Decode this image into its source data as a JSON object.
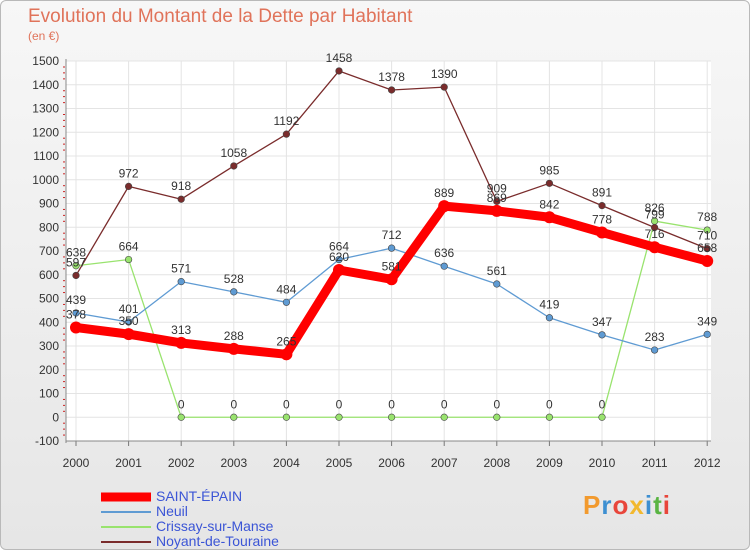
{
  "title": "Evolution du Montant de la Dette par Habitant",
  "subtitle": "(en €)",
  "logo": {
    "letters": [
      "P",
      "r",
      "o",
      "x",
      "i",
      "t",
      "i"
    ],
    "colors": [
      "#f29a2e",
      "#3d8fd1",
      "#e8463b",
      "#f2b82e",
      "#3d8fd1",
      "#59b443",
      "#e8463b"
    ]
  },
  "chart_data": {
    "type": "line",
    "title": "Evolution du Montant de la Dette par Habitant",
    "ylabel": "(en €)",
    "xlabel": "",
    "x": [
      "2000",
      "2001",
      "2002",
      "2003",
      "2004",
      "2005",
      "2006",
      "2007",
      "2008",
      "2009",
      "2010",
      "2011",
      "2012"
    ],
    "ylim": [
      -100,
      1500
    ],
    "yticks": [
      "-100",
      "0",
      "100",
      "200",
      "300",
      "400",
      "500",
      "600",
      "700",
      "800",
      "900",
      "1000",
      "1100",
      "1200",
      "1300",
      "1400",
      "1500"
    ],
    "grid": true,
    "legend_position": "bottom-left",
    "series": [
      {
        "name": "SAINT-ÉPAIN",
        "color": "#ff0000",
        "width": 9,
        "values": [
          378,
          350,
          313,
          288,
          265,
          620,
          581,
          889,
          869,
          842,
          778,
          716,
          658
        ],
        "labels": [
          "378",
          "350",
          "313",
          "288",
          "265",
          "620",
          "581",
          "889",
          "869",
          "842",
          "778",
          "716",
          "658"
        ]
      },
      {
        "name": "Neuil",
        "color": "#5f9bd3",
        "width": 1.3,
        "values": [
          439,
          401,
          571,
          528,
          484,
          664,
          712,
          636,
          561,
          419,
          347,
          283,
          349
        ],
        "labels": [
          "439",
          "401",
          "571",
          "528",
          "484",
          "664",
          "712",
          "636",
          "561",
          "419",
          "347",
          "283",
          "349"
        ]
      },
      {
        "name": "Crissay-sur-Manse",
        "color": "#99e36e",
        "width": 1.3,
        "values": [
          638,
          664,
          0,
          0,
          0,
          0,
          0,
          0,
          0,
          0,
          0,
          826,
          788
        ],
        "labels": [
          "638",
          "664",
          "0",
          "0",
          "0",
          "0",
          "0",
          "0",
          "0",
          "0",
          "0",
          "826",
          "788"
        ]
      },
      {
        "name": "Noyant-de-Touraine",
        "color": "#7a2c2c",
        "width": 1.3,
        "values": [
          597,
          972,
          918,
          1058,
          1192,
          1458,
          1378,
          1390,
          909,
          985,
          891,
          799,
          710
        ],
        "labels": [
          "597",
          "972",
          "918",
          "1058",
          "1192",
          "1458",
          "1378",
          "1390",
          "909",
          "985",
          "891",
          "799",
          "710"
        ]
      }
    ]
  }
}
